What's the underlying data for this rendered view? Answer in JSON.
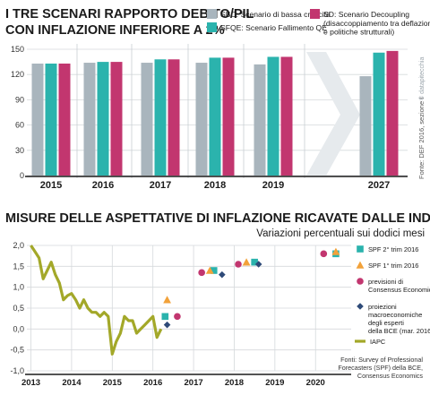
{
  "chart_data": [
    {
      "type": "bar",
      "title": "I TRE SCENARI RAPPORTO DEBITO/PIL CON INFLAZIONE INFERIORE A 2%",
      "title_lines": [
        "I TRE SCENARI RAPPORTO DEBITO/PIL",
        "CON INFLAZIONE INFERIORE A 2%"
      ],
      "categories": [
        "2015",
        "2016",
        "2017",
        "2018",
        "2019",
        "2027"
      ],
      "ylim": [
        0,
        150
      ],
      "yticks": [
        "0",
        "30",
        "60",
        "90",
        "120",
        "150"
      ],
      "ytick_values": [
        0,
        30,
        60,
        90,
        120,
        150
      ],
      "grid": true,
      "legend_position": "top",
      "series": [
        {
          "name": "SBC: Scenario di bassa crescita",
          "color": "#a9b5bd",
          "values": [
            133,
            134,
            134,
            134,
            132,
            118
          ]
        },
        {
          "name": "SFQE: Scenario Fallimento QE",
          "color": "#2bb3ad",
          "values": [
            133,
            135,
            138,
            140,
            141,
            146
          ]
        },
        {
          "name": "SD: Scenario Decoupling",
          "name_note": "(disaccoppiamento tra deflazione e politiche strutturali)",
          "name_note_lines": [
            "(disaccoppiamento tra deflazione",
            "e politiche strutturali)"
          ],
          "color": "#c2366f",
          "values": [
            133,
            135,
            138,
            140,
            141,
            148
          ]
        }
      ],
      "source": "Fonte: DEF 2016, sezione I",
      "watermark": "© datapitecchia"
    },
    {
      "type": "line",
      "title": "MISURE DELLE ASPETTATIVE DI INFLAZIONE RICAVATE DALLE INDAGINI",
      "subtitle": "Variazioni percentuali sui dodici mesi",
      "ylim": [
        -1.0,
        2.0
      ],
      "yticks": [
        "-1,0",
        "-0,5",
        "0,0",
        "0,5",
        "1,0",
        "1,5",
        "2,0"
      ],
      "ytick_values": [
        -1.0,
        -0.5,
        0.0,
        0.5,
        1.0,
        1.5,
        2.0
      ],
      "xticks": [
        "2013",
        "2014",
        "2015",
        "2016",
        "2017",
        "2018",
        "2019",
        "2020"
      ],
      "xtick_values": [
        2013,
        2014,
        2015,
        2016,
        2017,
        2018,
        2019,
        2020
      ],
      "xlim": [
        2012.9,
        2020.7
      ],
      "grid": true,
      "iapc": {
        "name": "IAPC",
        "color": "#a3a829",
        "x": [
          2013.0,
          2013.1,
          2013.2,
          2013.3,
          2013.4,
          2013.5,
          2013.6,
          2013.7,
          2013.8,
          2013.9,
          2014.0,
          2014.1,
          2014.2,
          2014.3,
          2014.4,
          2014.5,
          2014.6,
          2014.7,
          2014.8,
          2014.9,
          2015.0,
          2015.1,
          2015.2,
          2015.3,
          2015.4,
          2015.5,
          2015.6,
          2015.7,
          2015.8,
          2015.9,
          2016.0,
          2016.1,
          2016.2
        ],
        "y": [
          2.0,
          1.85,
          1.7,
          1.2,
          1.4,
          1.6,
          1.3,
          1.1,
          0.7,
          0.8,
          0.85,
          0.7,
          0.5,
          0.7,
          0.5,
          0.4,
          0.4,
          0.3,
          0.4,
          0.3,
          -0.6,
          -0.3,
          -0.1,
          0.3,
          0.2,
          0.2,
          -0.1,
          0.0,
          0.1,
          0.2,
          0.3,
          -0.2,
          0.0
        ]
      },
      "markers": [
        {
          "name": "SPF 2° trim 2016",
          "shape": "square",
          "color": "#2bb3ad",
          "points": [
            [
              2016.3,
              0.3
            ],
            [
              2017.5,
              1.4
            ],
            [
              2018.5,
              1.6
            ],
            [
              2020.5,
              1.8
            ]
          ]
        },
        {
          "name": "SPF 1° trim 2016",
          "shape": "triangle",
          "color": "#f2a23a",
          "points": [
            [
              2016.35,
              0.7
            ],
            [
              2017.4,
              1.4
            ],
            [
              2018.3,
              1.6
            ],
            [
              2020.5,
              1.85
            ]
          ]
        },
        {
          "name": "previsioni di Consensus Economics",
          "name_lines": [
            "previsioni di",
            "Consensus Economics"
          ],
          "shape": "circle",
          "color": "#c2366f",
          "points": [
            [
              2016.6,
              0.3
            ],
            [
              2017.2,
              1.35
            ],
            [
              2018.1,
              1.55
            ],
            [
              2020.2,
              1.8
            ]
          ]
        },
        {
          "name": "proiezioni macroeconomiche degli esperti della BCE (mar. 2016)",
          "name_lines": [
            "proiezioni",
            "macroeconomiche",
            "degli esperti",
            "della BCE (mar. 2016)"
          ],
          "shape": "diamond",
          "color": "#2e4a78",
          "points": [
            [
              2016.35,
              0.1
            ],
            [
              2017.7,
              1.3
            ],
            [
              2018.6,
              1.55
            ]
          ]
        }
      ],
      "source": "Fonti: Survey of Professional Forecasters (SPF) della BCE, Consensus Economics",
      "source_lines": [
        "Fonti: Survey of Professional",
        "Forecasters (SPF) della BCE,",
        "Consensus Economics"
      ]
    }
  ]
}
